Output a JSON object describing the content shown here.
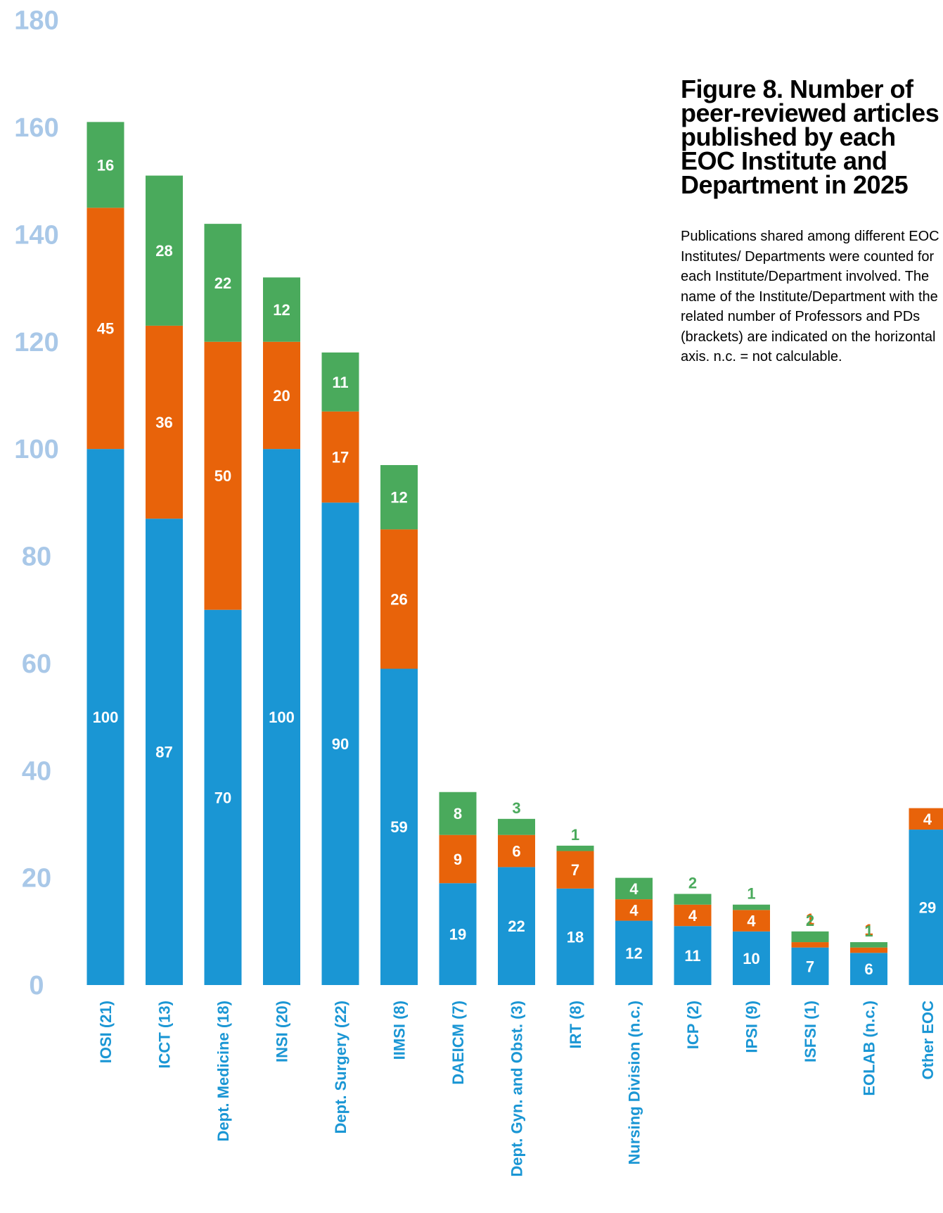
{
  "figure": {
    "title": "Figure 8. Number of peer-reviewed articles published by each EOC Institute and Department in 2025",
    "note": "Publications shared among different EOC Institutes/ Departments were counted for each Institute/Department involved. The name of the Institute/Department with the related number of Professors and PDs (brackets) are indicated on the horizontal axis. n.c. = not calculable."
  },
  "chart_data": {
    "type": "bar",
    "stacked": true,
    "title": "Figure 8. Number of peer-reviewed articles published by each EOC Institute and Department in 2025",
    "xlabel": "",
    "ylabel": "",
    "ylim": [
      0,
      180
    ],
    "yticks": [
      0,
      20,
      40,
      60,
      80,
      100,
      120,
      140,
      160,
      180
    ],
    "grid": false,
    "categories": [
      "IOSI (21)",
      "ICCT (13)",
      "Dept. Medicine (18)",
      "INSI (20)",
      "Dept. Surgery (22)",
      "IIMSI (8)",
      "DAEICM (7)",
      "Dept. Gyn. and Obst. (3)",
      "IRT (8)",
      "Nursing Division (n.c.)",
      "ICP (2)",
      "IPSI (9)",
      "ISFSI (1)",
      "EOLAB (n.c.)",
      "Other EOC"
    ],
    "series": [
      {
        "color": "#1a96d4",
        "values": [
          100,
          87,
          70,
          100,
          90,
          59,
          19,
          22,
          18,
          12,
          11,
          10,
          7,
          6,
          29
        ]
      },
      {
        "color": "#e8630a",
        "values": [
          45,
          36,
          50,
          20,
          17,
          26,
          9,
          6,
          7,
          4,
          4,
          4,
          1,
          1,
          4
        ]
      },
      {
        "color": "#4aaa5c",
        "values": [
          16,
          28,
          22,
          12,
          11,
          12,
          8,
          3,
          1,
          4,
          2,
          1,
          2,
          1,
          0
        ]
      }
    ]
  }
}
